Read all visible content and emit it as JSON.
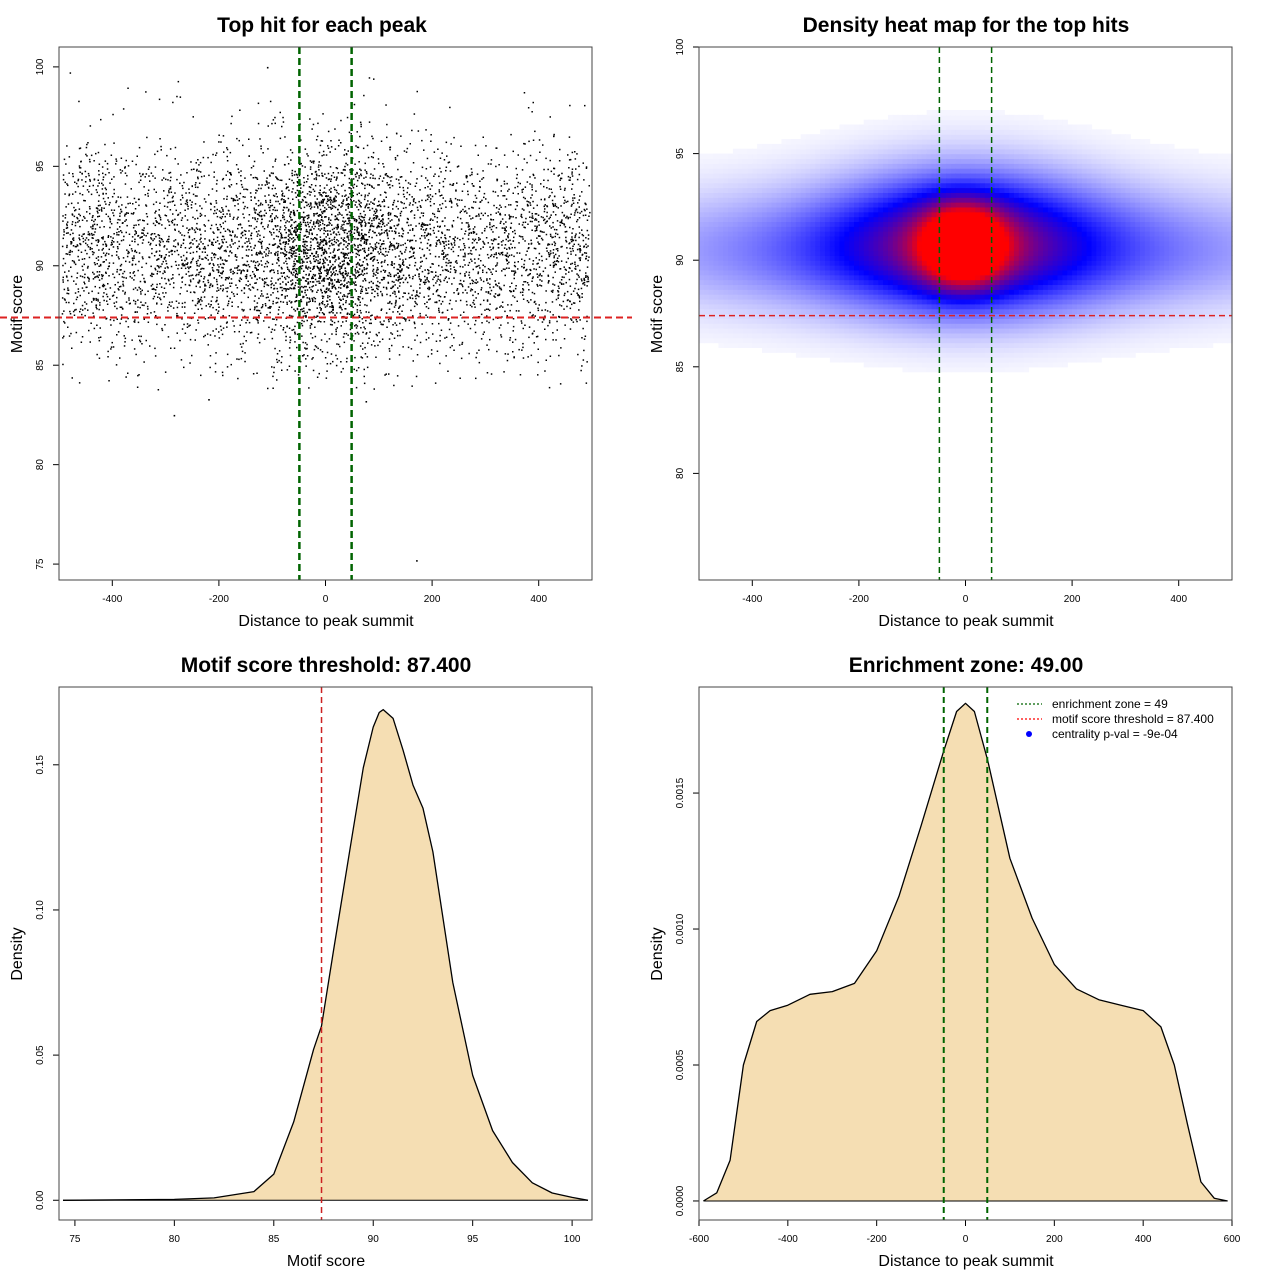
{
  "chart_data": [
    {
      "type": "scatter",
      "title": "Top hit for each peak",
      "xlabel": "Distance to peak summit",
      "ylabel": "Motif score",
      "xlim": [
        -500,
        500
      ],
      "ylim": [
        74.2,
        101
      ],
      "xticks": [
        "-400",
        "-200",
        "0",
        "200",
        "400"
      ],
      "yticks": [
        "75",
        "80",
        "85",
        "90",
        "95",
        "100"
      ],
      "vlines": [
        -49,
        49
      ],
      "hline": 87.4,
      "grid": false,
      "point_count": 6000,
      "distribution": {
        "score_mean": 90.8,
        "score_sd": 2.6,
        "x_range": [
          -495,
          495
        ],
        "central_peak_halfwidth": 70
      },
      "notable_points": [
        {
          "x": 170,
          "y": 75.2
        },
        {
          "x": -220,
          "y": 83.3
        },
        {
          "x": -285,
          "y": 82.5
        },
        {
          "x": 75,
          "y": 83.2
        },
        {
          "x": -110,
          "y": 100
        }
      ]
    },
    {
      "type": "heatmap",
      "title": "Density heat map for the top hits",
      "xlabel": "Distance to peak summit",
      "ylabel": "Motif score",
      "xlim": [
        -500,
        500
      ],
      "ylim": [
        75,
        100
      ],
      "xticks": [
        "-400",
        "-200",
        "0",
        "200",
        "400"
      ],
      "yticks": [
        "80",
        "85",
        "90",
        "95",
        "100"
      ],
      "vlines": [
        -49,
        49
      ],
      "hline": 87.4,
      "color_scale": [
        "#ffffff",
        "#0000ff",
        "#ff0000"
      ],
      "density_components": [
        {
          "x": -5,
          "y": 90.7,
          "sx": 50,
          "sy": 1.2,
          "weight": 1.0
        },
        {
          "x": 0,
          "y": 91.0,
          "sx": 160,
          "sy": 2.3,
          "weight": 0.55
        },
        {
          "x": 0,
          "y": 90.5,
          "sx": 430,
          "sy": 2.0,
          "weight": 0.42
        }
      ]
    },
    {
      "type": "area",
      "title": "Motif score threshold: 87.400",
      "xlabel": "Motif score",
      "ylabel": "Density",
      "xlim": [
        74.2,
        101
      ],
      "ylim": [
        -0.0068,
        0.1768
      ],
      "xticks": [
        "75",
        "80",
        "85",
        "90",
        "95",
        "100"
      ],
      "yticks": [
        "0.00",
        "0.05",
        "0.10",
        "0.15"
      ],
      "vline": 87.4,
      "fill": "#f5deb3",
      "x": [
        74.4,
        80,
        82,
        84,
        85,
        86,
        87,
        87.4,
        88,
        89,
        89.5,
        90,
        90.3,
        90.5,
        91,
        91.5,
        92,
        92.5,
        93,
        94,
        95,
        96,
        97,
        98,
        99,
        100,
        100.8
      ],
      "y": [
        0.0,
        0.0003,
        0.0008,
        0.003,
        0.009,
        0.027,
        0.052,
        0.06,
        0.086,
        0.128,
        0.149,
        0.163,
        0.168,
        0.169,
        0.166,
        0.155,
        0.143,
        0.135,
        0.12,
        0.075,
        0.043,
        0.024,
        0.013,
        0.006,
        0.0025,
        0.001,
        0.0
      ]
    },
    {
      "type": "area",
      "title": "Enrichment zone: 49.00",
      "xlabel": "Distance to peak summit",
      "ylabel": "Density",
      "xlim": [
        -600,
        600
      ],
      "ylim": [
        -7e-05,
        0.00189
      ],
      "xticks": [
        "-600",
        "-400",
        "-200",
        "0",
        "200",
        "400",
        "600"
      ],
      "yticks": [
        "0.0000",
        "0.0005",
        "0.0010",
        "0.0015"
      ],
      "vlines": [
        -49,
        49
      ],
      "fill": "#f5deb3",
      "x": [
        -590,
        -560,
        -530,
        -500,
        -470,
        -440,
        -400,
        -350,
        -300,
        -250,
        -200,
        -150,
        -100,
        -50,
        -20,
        0,
        20,
        50,
        100,
        150,
        200,
        250,
        300,
        350,
        400,
        440,
        470,
        500,
        530,
        560,
        590
      ],
      "y": [
        0.0,
        3e-05,
        0.00015,
        0.0005,
        0.00066,
        0.0007,
        0.00072,
        0.00076,
        0.00077,
        0.0008,
        0.00092,
        0.00112,
        0.00138,
        0.00165,
        0.0018,
        0.00183,
        0.0018,
        0.00162,
        0.00126,
        0.00104,
        0.00087,
        0.00078,
        0.00074,
        0.00072,
        0.0007,
        0.00064,
        0.0005,
        0.00028,
        7e-05,
        1e-05,
        0.0
      ],
      "legend": {
        "position": "top-right",
        "items": [
          {
            "label": "enrichment zone = 49",
            "color": "#006400",
            "style": "dotted"
          },
          {
            "label": "motif score threshold = 87.400",
            "color": "#ff0000",
            "style": "dotted"
          },
          {
            "label": "centrality p-val = -9e-04",
            "color": "#0000ff",
            "style": "point"
          }
        ]
      }
    }
  ]
}
